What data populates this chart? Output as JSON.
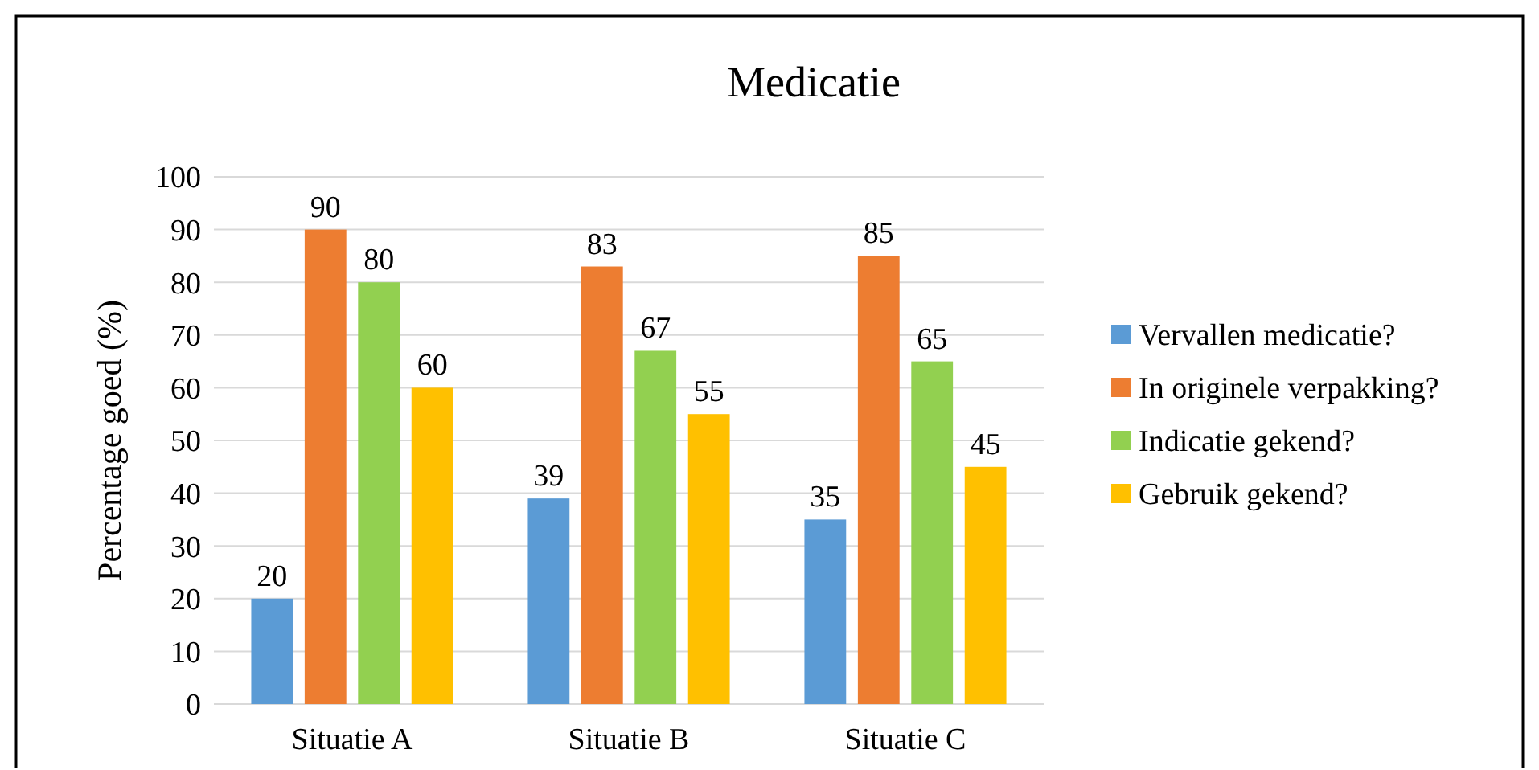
{
  "chart_data": {
    "type": "bar",
    "title": "Medicatie",
    "ylabel": "Percentage goed (%)",
    "categories": [
      "Situatie A",
      "Situatie B",
      "Situatie C"
    ],
    "series": [
      {
        "name": "Vervallen medicatie?",
        "color": "#5b9bd5",
        "values": [
          20,
          39,
          35
        ]
      },
      {
        "name": "In originele verpakking?",
        "color": "#ed7d31",
        "values": [
          90,
          83,
          85
        ]
      },
      {
        "name": "Indicatie gekend?",
        "color": "#92d050",
        "values": [
          80,
          67,
          65
        ]
      },
      {
        "name": "Gebruik gekend?",
        "color": "#ffc000",
        "values": [
          60,
          55,
          45
        ]
      }
    ],
    "ylim": [
      0,
      100
    ],
    "yticks": [
      0,
      10,
      20,
      30,
      40,
      50,
      60,
      70,
      80,
      90,
      100
    ],
    "grid": "y",
    "legend": "right",
    "data_labels": true
  }
}
